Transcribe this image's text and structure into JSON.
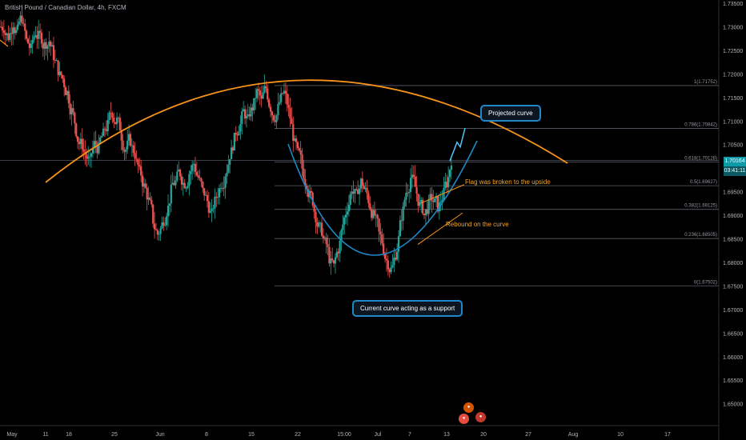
{
  "header": {
    "title": "British Pound / Canadian Dollar, 4h, FXCM"
  },
  "colors": {
    "up": "#26a69a",
    "down": "#ef5350",
    "orange": "#f7931a",
    "blue": "#1e88c8",
    "grid": "#2a2e39"
  },
  "chart_data": {
    "type": "candlestick",
    "symbol": "GBPCAD",
    "timeframe": "4h",
    "ylim": [
      1.645,
      1.735
    ],
    "y_ticks": [
      "1.73500",
      "1.73000",
      "1.72500",
      "1.72000",
      "1.71500",
      "1.71000",
      "1.70500",
      "1.70000",
      "1.69500",
      "1.69000",
      "1.68500",
      "1.68000",
      "1.67500",
      "1.67000",
      "1.66500",
      "1.66000",
      "1.65500",
      "1.65000"
    ],
    "x_ticks": [
      "May",
      "11",
      "18",
      "25",
      "Jun",
      "8",
      "15",
      "22",
      "15:00",
      "Jul",
      "7",
      "13",
      "20",
      "27",
      "Aug",
      "10",
      "17"
    ],
    "last_price": "1.70164",
    "countdown": "03:41:11",
    "candle_path_closes": [
      1.73,
      1.728,
      1.731,
      1.729,
      1.732,
      1.727,
      1.725,
      1.729,
      1.728,
      1.726,
      1.727,
      1.724,
      1.721,
      1.719,
      1.716,
      1.712,
      1.708,
      1.705,
      1.703,
      1.701,
      1.705,
      1.704,
      1.707,
      1.709,
      1.712,
      1.71,
      1.707,
      1.704,
      1.706,
      1.703,
      1.699,
      1.696,
      1.693,
      1.689,
      1.686,
      1.688,
      1.691,
      1.695,
      1.697,
      1.699,
      1.697,
      1.699,
      1.701,
      1.698,
      1.695,
      1.693,
      1.69,
      1.694,
      1.697,
      1.699,
      1.703,
      1.706,
      1.709,
      1.712,
      1.71,
      1.713,
      1.716,
      1.714,
      1.717,
      1.713,
      1.711,
      1.714,
      1.716,
      1.712,
      1.707,
      1.703,
      1.7,
      1.697,
      1.694,
      1.69,
      1.687,
      1.684,
      1.681,
      1.679,
      1.683,
      1.688,
      1.692,
      1.696,
      1.694,
      1.697,
      1.695,
      1.692,
      1.69,
      1.686,
      1.683,
      1.68,
      1.679,
      1.683,
      1.69,
      1.695,
      1.698,
      1.696,
      1.692,
      1.69,
      1.692,
      1.693,
      1.692,
      1.694,
      1.697,
      1.702
    ],
    "fibonacci": [
      {
        "label": "1(1.71752)",
        "price": 1.71752
      },
      {
        "label": "0.786(1.70842)",
        "price": 1.70842
      },
      {
        "label": "0.618(1.70128)",
        "price": 1.70128
      },
      {
        "label": "0.5(1.69627)",
        "price": 1.69627
      },
      {
        "label": "0.382(1.69125)",
        "price": 1.69125
      },
      {
        "label": "0.236(1.68505)",
        "price": 1.68505
      },
      {
        "label": "0(1.67502)",
        "price": 1.67502
      }
    ],
    "annotations": {
      "projected": "Projected curve",
      "flag": "Flag was broken to the upside",
      "rebound": "Rebound on the curve",
      "support": "Current curve acting as a support"
    }
  }
}
